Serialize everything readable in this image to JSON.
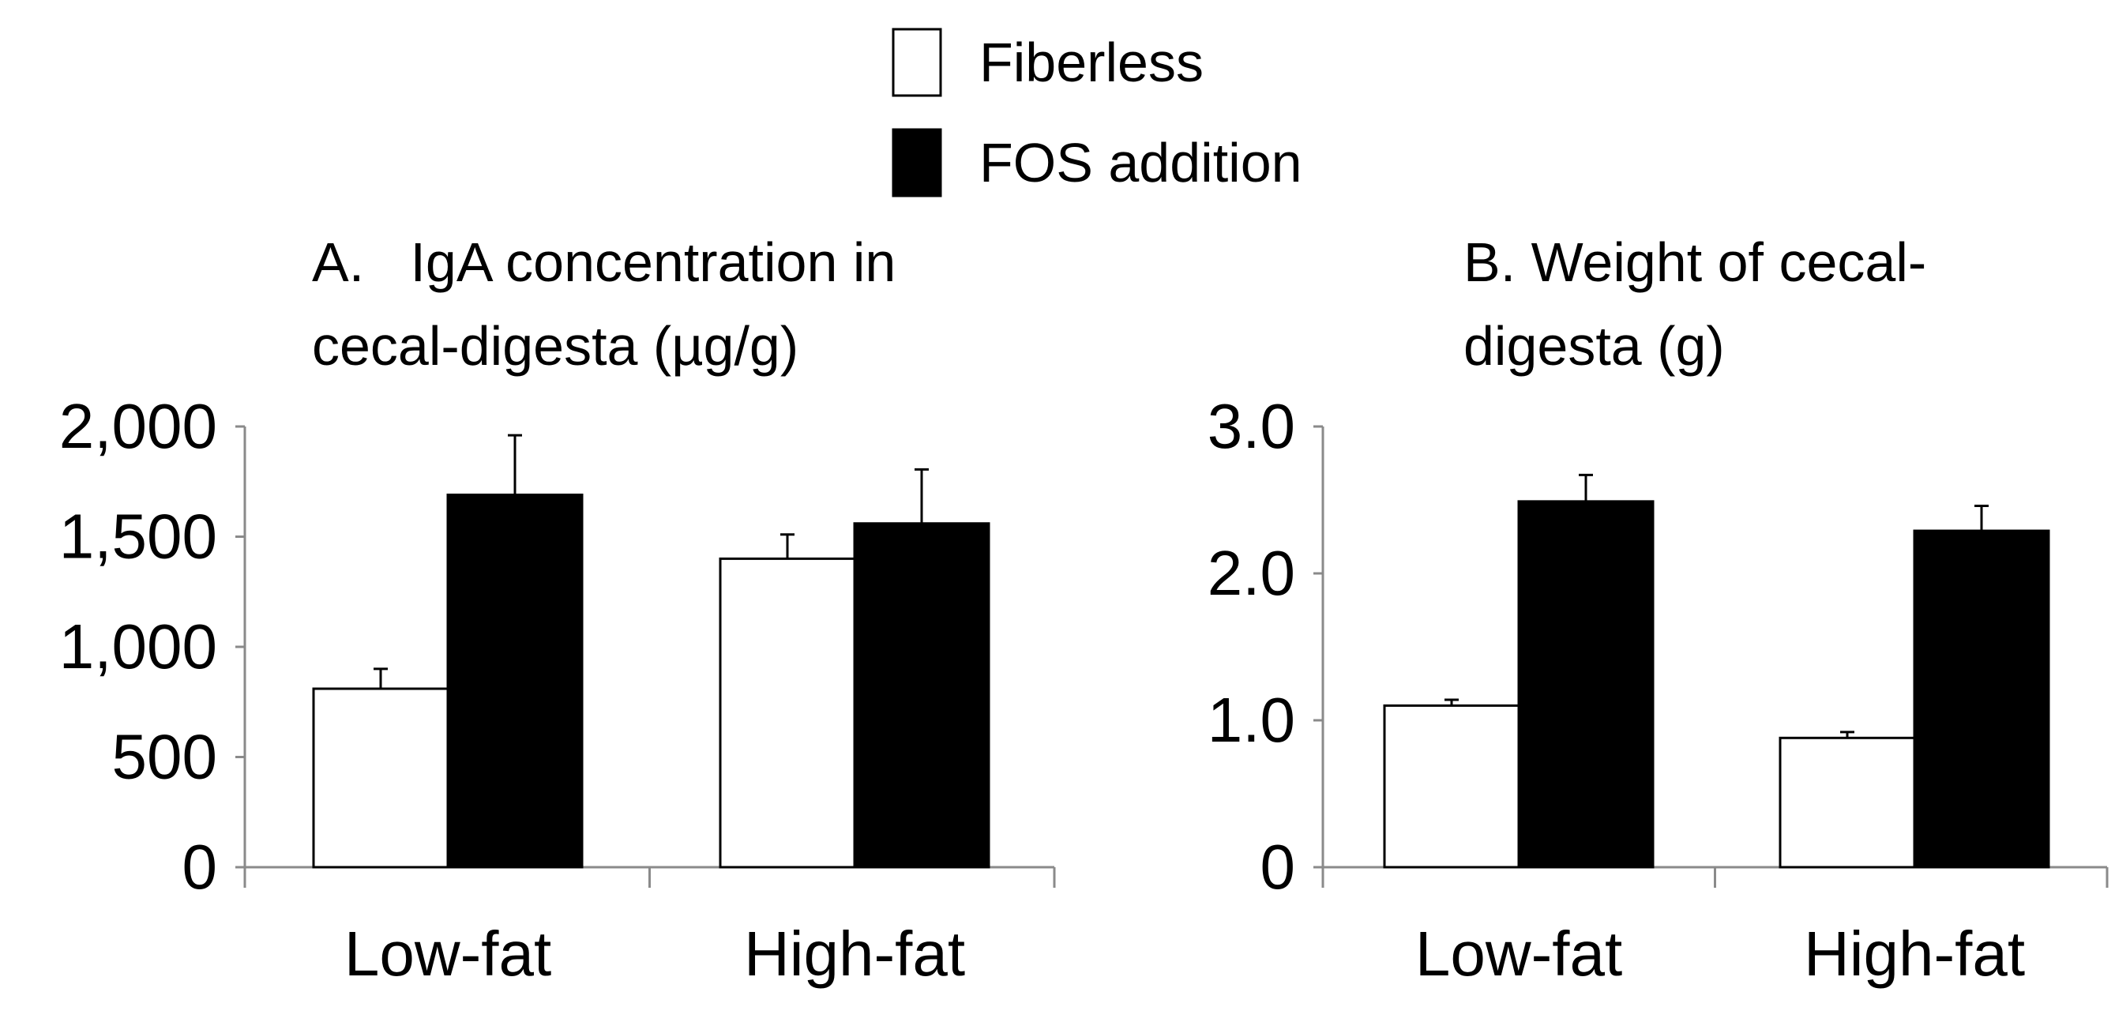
{
  "legend": {
    "items": [
      {
        "label": "Fiberless",
        "fill": "#ffffff",
        "stroke": "#000000"
      },
      {
        "label": "FOS addition",
        "fill": "#000000",
        "stroke": "#000000"
      }
    ]
  },
  "chart_data": [
    {
      "type": "bar",
      "panel": "A",
      "title": [
        "A.   IgA concentration in",
        "cecal-digesta (µg/g)"
      ],
      "categories": [
        "Low-fat",
        "High-fat"
      ],
      "series": [
        {
          "name": "Fiberless",
          "values": [
            810,
            1400
          ],
          "errors": [
            90,
            110
          ],
          "color": "#ffffff"
        },
        {
          "name": "FOS addition",
          "values": [
            1690,
            1560
          ],
          "errors": [
            270,
            245
          ],
          "color": "#000000"
        }
      ],
      "xlabel": "",
      "ylabel": "",
      "ylim": [
        0,
        2000
      ],
      "yticks": [
        0,
        500,
        1000,
        1500,
        2000
      ],
      "ytick_labels": [
        "0",
        "500",
        "1,000",
        "1,500",
        "2,000"
      ],
      "grid": false,
      "legend_position": "top-center"
    },
    {
      "type": "bar",
      "panel": "B",
      "title": [
        "B. Weight of cecal-",
        "digesta (g)"
      ],
      "categories": [
        "Low-fat",
        "High-fat"
      ],
      "series": [
        {
          "name": "Fiberless",
          "values": [
            1.1,
            0.88
          ],
          "errors": [
            0.04,
            0.04
          ],
          "color": "#ffffff"
        },
        {
          "name": "FOS addition",
          "values": [
            2.49,
            2.29
          ],
          "errors": [
            0.18,
            0.17
          ],
          "color": "#000000"
        }
      ],
      "xlabel": "",
      "ylabel": "",
      "ylim": [
        0,
        3
      ],
      "yticks": [
        0,
        1,
        2,
        3
      ],
      "ytick_labels": [
        "0",
        "1.0",
        "2.0",
        "3.0"
      ],
      "grid": false,
      "legend_position": "top-center"
    }
  ]
}
